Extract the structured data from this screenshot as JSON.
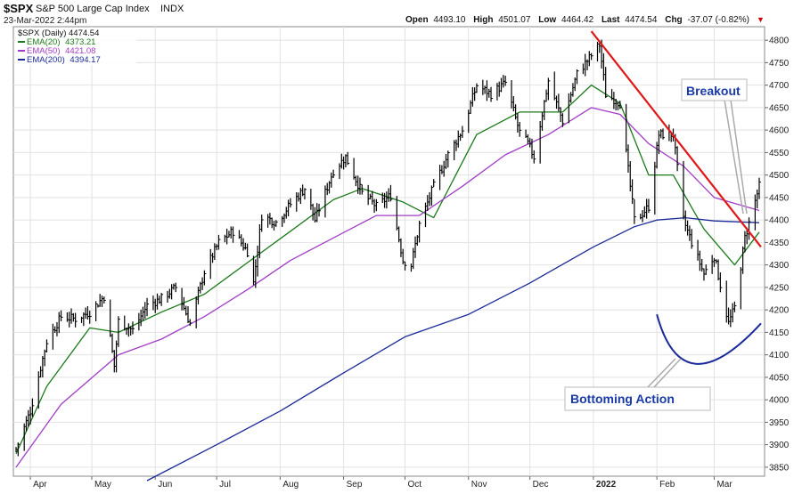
{
  "header": {
    "symbol": "$SPX",
    "name": "S&P 500 Large Cap Index",
    "exchange": "INDX",
    "datetime": "23-Mar-2022 2:44pm",
    "open_label": "Open",
    "open": "4493.10",
    "high_label": "High",
    "high": "4501.07",
    "low_label": "Low",
    "low": "4464.42",
    "last_label": "Last",
    "last": "4474.54",
    "chg_label": "Chg",
    "chg": "-37.07 (-0.82%)",
    "down_arrow": "▼"
  },
  "legend": {
    "price": "$SPX (Daily) 4474.54",
    "ema20_label": "EMA(20)",
    "ema20": "4373.21",
    "ema50_label": "EMA(50)",
    "ema50": "4421.08",
    "ema200_label": "EMA(200)",
    "ema200": "4394.17"
  },
  "annotations": {
    "breakout": "Breakout",
    "bottoming": "Bottoming Action"
  },
  "colors": {
    "price": "#000000",
    "ema20": "#1a7a1a",
    "ema50": "#a23cc8",
    "ema200": "#1a2a9a",
    "trendline": "#e01818",
    "arc": "#1a2a9a",
    "annotation_text": "#1a3aa8",
    "grid": "#e2e2e2",
    "down": "#cc0000"
  },
  "chart_data": {
    "type": "line",
    "title": "$SPX S&P 500 Large Cap Index INDX",
    "ylim": [
      3830,
      4830
    ],
    "yticks": [
      3850,
      3900,
      3950,
      4000,
      4050,
      4100,
      4150,
      4200,
      4250,
      4300,
      4350,
      4400,
      4450,
      4500,
      4550,
      4600,
      4650,
      4700,
      4750,
      4800
    ],
    "y_axis_side": "right",
    "grid": true,
    "x_start": "2021-03-25",
    "x_end": "2022-03-23",
    "month_labels": [
      {
        "date": "2021-04-01",
        "label": "Apr"
      },
      {
        "date": "2021-05-01",
        "label": "May"
      },
      {
        "date": "2021-06-01",
        "label": "Jun"
      },
      {
        "date": "2021-07-01",
        "label": "Jul"
      },
      {
        "date": "2021-08-01",
        "label": "Aug"
      },
      {
        "date": "2021-09-01",
        "label": "Sep"
      },
      {
        "date": "2021-10-01",
        "label": "Oct"
      },
      {
        "date": "2021-11-01",
        "label": "Nov"
      },
      {
        "date": "2021-12-01",
        "label": "Dec"
      },
      {
        "date": "2022-01-01",
        "label": "2022"
      },
      {
        "date": "2022-02-01",
        "label": "Feb"
      },
      {
        "date": "2022-03-01",
        "label": "Mar"
      }
    ],
    "close_series": {
      "name": "$SPX (Daily) 4474.54",
      "style": "ohlc-bars",
      "x": [
        "2021-03-25",
        "2021-04-01",
        "2021-04-09",
        "2021-04-16",
        "2021-04-23",
        "2021-04-30",
        "2021-05-07",
        "2021-05-12",
        "2021-05-14",
        "2021-05-21",
        "2021-05-28",
        "2021-06-04",
        "2021-06-11",
        "2021-06-18",
        "2021-06-25",
        "2021-07-02",
        "2021-07-09",
        "2021-07-16",
        "2021-07-19",
        "2021-07-23",
        "2021-07-30",
        "2021-08-06",
        "2021-08-13",
        "2021-08-18",
        "2021-08-27",
        "2021-09-02",
        "2021-09-10",
        "2021-09-17",
        "2021-09-24",
        "2021-09-30",
        "2021-10-04",
        "2021-10-08",
        "2021-10-15",
        "2021-10-22",
        "2021-10-29",
        "2021-11-05",
        "2021-11-12",
        "2021-11-19",
        "2021-11-26",
        "2021-11-30",
        "2021-12-03",
        "2021-12-10",
        "2021-12-17",
        "2021-12-24",
        "2021-12-31",
        "2022-01-04",
        "2022-01-07",
        "2022-01-14",
        "2022-01-21",
        "2022-01-24",
        "2022-01-28",
        "2022-02-02",
        "2022-02-09",
        "2022-02-14",
        "2022-02-18",
        "2022-02-24",
        "2022-03-01",
        "2022-03-08",
        "2022-03-11",
        "2022-03-16",
        "2022-03-23"
      ],
      "values": [
        3890,
        3975,
        4130,
        4185,
        4180,
        4195,
        4230,
        4075,
        4175,
        4155,
        4210,
        4225,
        4250,
        4170,
        4285,
        4350,
        4375,
        4330,
        4260,
        4410,
        4395,
        4435,
        4470,
        4400,
        4510,
        4540,
        4460,
        4430,
        4455,
        4310,
        4300,
        4390,
        4475,
        4545,
        4600,
        4700,
        4680,
        4705,
        4595,
        4570,
        4540,
        4710,
        4620,
        4725,
        4766,
        4790,
        4680,
        4660,
        4400,
        4410,
        4430,
        4590,
        4590,
        4400,
        4350,
        4280,
        4320,
        4170,
        4205,
        4360,
        4475
      ]
    },
    "series": [
      {
        "name": "EMA(20) 4373.21",
        "x": [
          "2021-03-25",
          "2021-04-09",
          "2021-04-30",
          "2021-05-14",
          "2021-06-04",
          "2021-06-25",
          "2021-07-16",
          "2021-08-06",
          "2021-08-27",
          "2021-09-10",
          "2021-09-30",
          "2021-10-15",
          "2021-11-05",
          "2021-11-26",
          "2021-12-17",
          "2021-12-31",
          "2022-01-14",
          "2022-01-28",
          "2022-02-09",
          "2022-02-24",
          "2022-03-11",
          "2022-03-23"
        ],
        "values": [
          3880,
          4030,
          4160,
          4150,
          4195,
          4235,
          4305,
          4375,
          4445,
          4470,
          4440,
          4405,
          4590,
          4640,
          4640,
          4700,
          4660,
          4500,
          4500,
          4380,
          4300,
          4373
        ]
      },
      {
        "name": "EMA(50) 4421.08",
        "x": [
          "2021-03-25",
          "2021-04-16",
          "2021-05-14",
          "2021-06-04",
          "2021-06-25",
          "2021-07-16",
          "2021-08-06",
          "2021-08-27",
          "2021-09-17",
          "2021-10-08",
          "2021-10-29",
          "2021-11-19",
          "2021-12-10",
          "2021-12-31",
          "2022-01-14",
          "2022-01-28",
          "2022-02-14",
          "2022-03-01",
          "2022-03-23"
        ],
        "values": [
          3850,
          3990,
          4100,
          4135,
          4185,
          4245,
          4310,
          4360,
          4410,
          4410,
          4475,
          4545,
          4590,
          4650,
          4635,
          4570,
          4520,
          4450,
          4421
        ]
      },
      {
        "name": "EMA(200) 4394.17",
        "x": [
          "2021-05-28",
          "2021-07-01",
          "2021-08-01",
          "2021-09-01",
          "2021-10-01",
          "2021-11-01",
          "2021-12-01",
          "2022-01-01",
          "2022-01-21",
          "2022-02-01",
          "2022-02-15",
          "2022-03-01",
          "2022-03-23"
        ],
        "values": [
          3820,
          3900,
          3975,
          4060,
          4140,
          4190,
          4260,
          4340,
          4385,
          4400,
          4405,
          4398,
          4394
        ]
      }
    ],
    "trendline": {
      "x": [
        "2021-12-31",
        "2022-03-23"
      ],
      "y": [
        4820,
        4340
      ]
    },
    "arc": {
      "x": [
        "2022-02-01",
        "2022-02-20",
        "2022-03-23"
      ],
      "y": [
        4190,
        4080,
        4170
      ]
    }
  }
}
